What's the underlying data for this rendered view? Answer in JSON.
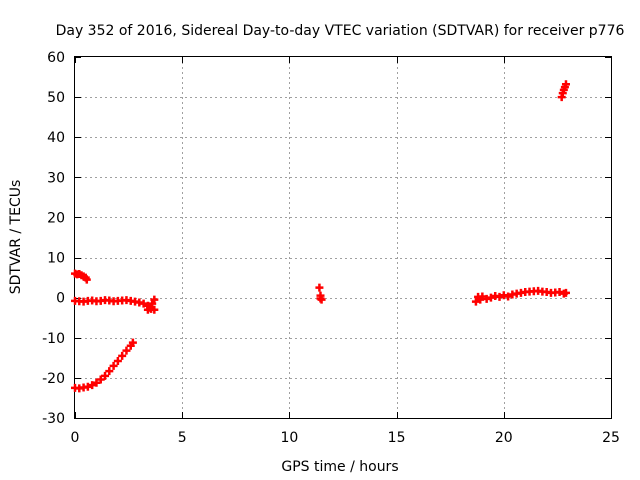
{
  "chart_data": {
    "type": "scatter",
    "title": "Day 352 of 2016, Sidereal Day-to-day VTEC variation (SDTVAR) for receiver p776",
    "xlabel": "GPS time / hours",
    "ylabel": "SDTVAR / TECUs",
    "xlim": [
      0,
      25
    ],
    "ylim": [
      -30,
      60
    ],
    "xticks": [
      0,
      5,
      10,
      15,
      20,
      25
    ],
    "yticks": [
      -30,
      -20,
      -10,
      0,
      10,
      20,
      30,
      40,
      50,
      60
    ],
    "xtick_labels": [
      "0",
      "5",
      "10",
      "15",
      "20",
      "25"
    ],
    "ytick_labels": [
      "-30",
      "-20",
      "-10",
      "0",
      "10",
      "20",
      "30",
      "40",
      "50",
      "60"
    ],
    "grid": true,
    "marker": "plus",
    "color": "#ff0000",
    "series": [
      {
        "name": "SDTVAR",
        "x": [
          0.0,
          0.1,
          0.2,
          0.3,
          0.4,
          0.5,
          0.55,
          0.0,
          0.2,
          0.4,
          0.6,
          0.8,
          1.0,
          1.2,
          1.4,
          1.6,
          1.8,
          2.0,
          2.2,
          2.4,
          2.6,
          2.8,
          3.0,
          3.2,
          3.4,
          3.5,
          3.6,
          3.7,
          3.4,
          3.55,
          3.7,
          0.0,
          0.2,
          0.4,
          0.6,
          0.8,
          1.0,
          1.2,
          1.4,
          1.6,
          1.8,
          2.0,
          2.2,
          2.4,
          2.6,
          2.7,
          11.4,
          11.45,
          11.45,
          11.5,
          18.7,
          18.8,
          18.9,
          19.0,
          19.2,
          19.4,
          19.6,
          19.8,
          20.0,
          20.2,
          20.4,
          20.6,
          20.8,
          21.0,
          21.2,
          21.4,
          21.6,
          21.8,
          22.0,
          22.2,
          22.4,
          22.6,
          22.8,
          22.9,
          22.7,
          22.75,
          22.8,
          22.85,
          22.9
        ],
        "y": [
          6.0,
          5.8,
          5.9,
          5.6,
          5.3,
          5.0,
          4.5,
          -0.8,
          -0.9,
          -1.0,
          -0.8,
          -0.7,
          -0.9,
          -0.8,
          -0.6,
          -0.7,
          -0.9,
          -0.8,
          -0.7,
          -0.6,
          -0.8,
          -1.0,
          -1.2,
          -1.5,
          -2.0,
          -2.5,
          -1.5,
          -0.5,
          -3.0,
          -2.8,
          -3.0,
          -22.5,
          -22.6,
          -22.4,
          -22.2,
          -21.8,
          -21.2,
          -20.4,
          -19.5,
          -18.3,
          -17.0,
          -15.8,
          -14.5,
          -13.2,
          -12.0,
          -11.2,
          2.5,
          0.5,
          -0.2,
          -0.5,
          -1.0,
          0.2,
          -0.5,
          0.3,
          -0.3,
          0.0,
          0.4,
          0.2,
          0.6,
          0.3,
          0.8,
          1.0,
          1.2,
          1.4,
          1.5,
          1.6,
          1.7,
          1.5,
          1.4,
          1.2,
          1.3,
          1.4,
          1.0,
          1.2,
          50.0,
          51.0,
          51.8,
          52.5,
          53.2
        ]
      }
    ]
  }
}
